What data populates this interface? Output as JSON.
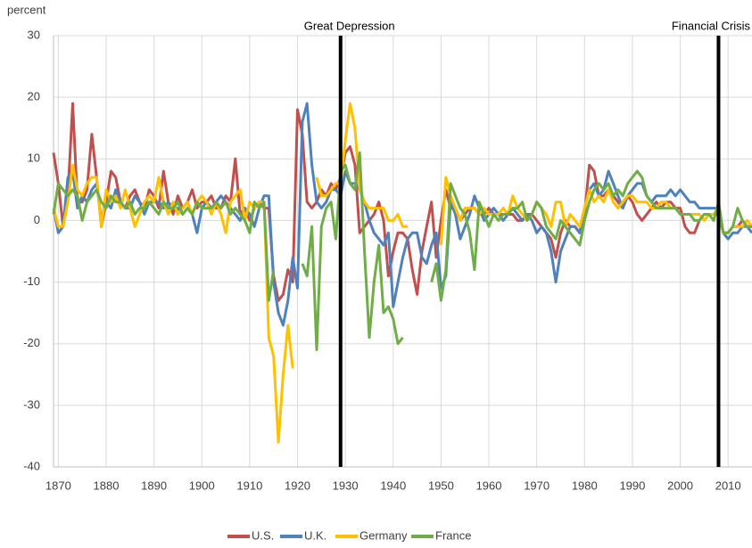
{
  "chart_data": {
    "type": "line",
    "y_label": "percent",
    "annotations": [
      {
        "text": "Great Depression",
        "x": 1929
      },
      {
        "text": "Financial Crisis",
        "x": 2008
      }
    ],
    "x": [
      1869,
      1870,
      1871,
      1872,
      1873,
      1874,
      1875,
      1876,
      1877,
      1878,
      1879,
      1880,
      1881,
      1882,
      1883,
      1884,
      1885,
      1886,
      1887,
      1888,
      1889,
      1890,
      1891,
      1892,
      1893,
      1894,
      1895,
      1896,
      1897,
      1898,
      1899,
      1900,
      1901,
      1902,
      1903,
      1904,
      1905,
      1906,
      1907,
      1908,
      1909,
      1910,
      1911,
      1912,
      1913,
      1914,
      1915,
      1916,
      1917,
      1918,
      1919,
      1920,
      1921,
      1922,
      1923,
      1924,
      1925,
      1926,
      1927,
      1928,
      1929,
      1930,
      1931,
      1932,
      1933,
      1934,
      1935,
      1936,
      1937,
      1938,
      1939,
      1940,
      1941,
      1942,
      1943,
      1944,
      1945,
      1946,
      1947,
      1948,
      1949,
      1950,
      1951,
      1952,
      1953,
      1954,
      1955,
      1956,
      1957,
      1958,
      1959,
      1960,
      1961,
      1962,
      1963,
      1964,
      1965,
      1966,
      1967,
      1968,
      1969,
      1970,
      1971,
      1972,
      1973,
      1974,
      1975,
      1976,
      1977,
      1978,
      1979,
      1980,
      1981,
      1982,
      1983,
      1984,
      1985,
      1986,
      1987,
      1988,
      1989,
      1990,
      1991,
      1992,
      1993,
      1994,
      1995,
      1996,
      1997,
      1998,
      1999,
      2000,
      2001,
      2002,
      2003,
      2004,
      2005,
      2006,
      2007,
      2008,
      2009,
      2010,
      2011,
      2012,
      2013,
      2014,
      2015
    ],
    "series": [
      {
        "name": "U.S.",
        "color": "#c0504d",
        "values": [
          11,
          6,
          -1,
          4,
          19,
          3,
          3,
          5,
          14,
          7,
          -1,
          3,
          8,
          7,
          3,
          2,
          4,
          5,
          3,
          2,
          5,
          4,
          2,
          8,
          3,
          1,
          4,
          2,
          3,
          5,
          2,
          3,
          3,
          4,
          2,
          2,
          4,
          3,
          10,
          1,
          2,
          0,
          2,
          3,
          2,
          2,
          -9,
          -13,
          -12,
          -8,
          -10,
          18,
          14,
          3,
          2,
          3,
          5,
          4,
          6,
          5,
          7,
          11,
          12,
          9,
          -2,
          -1,
          0,
          1,
          3,
          0,
          -9,
          -5,
          -2,
          -2,
          -3,
          -8,
          -12,
          -5,
          -1,
          3,
          -6,
          0,
          5,
          2,
          2,
          0,
          1,
          2,
          2,
          1,
          1,
          2,
          1,
          1,
          1,
          1,
          1,
          0,
          0,
          1,
          1,
          0,
          -1,
          -2,
          -3,
          -6,
          -2,
          0,
          -1,
          -1,
          -2,
          1,
          9,
          8,
          4,
          4,
          5,
          4,
          3,
          2,
          4,
          3,
          1,
          0,
          1,
          2,
          3,
          2,
          3,
          3,
          2,
          2,
          -1,
          -2,
          -2,
          0,
          1,
          1,
          1,
          1,
          -2,
          -2,
          -1,
          -1,
          0,
          -1,
          -1
        ]
      },
      {
        "name": "U.K.",
        "color": "#4f81bd",
        "values": [
          2,
          -2,
          -1,
          7,
          8,
          2,
          4,
          3,
          5,
          6,
          0,
          3,
          2,
          5,
          3,
          2,
          2,
          4,
          3,
          1,
          3,
          3,
          3,
          2,
          3,
          2,
          2,
          1,
          2,
          1,
          -2,
          2,
          3,
          2,
          3,
          4,
          3,
          2,
          1,
          0,
          2,
          1,
          -1,
          2,
          4,
          4,
          -10,
          -15,
          -17,
          -13,
          -6,
          -11,
          16,
          19,
          9,
          3,
          2,
          3,
          5,
          5,
          4,
          8,
          6,
          6,
          5,
          3,
          0,
          -2,
          -3,
          -4,
          -2,
          -14,
          -10,
          -6,
          -3,
          -2,
          -2,
          -6,
          -7,
          -4,
          -2,
          -11,
          -9,
          3,
          1,
          -3,
          -1,
          1,
          4,
          2,
          0,
          1,
          2,
          1,
          0,
          1,
          2,
          1,
          0,
          1,
          0,
          -2,
          -1,
          -2,
          -5,
          -10,
          -5,
          -3,
          -1,
          -1,
          -2,
          2,
          5,
          6,
          4,
          5,
          8,
          6,
          4,
          2,
          4,
          5,
          6,
          6,
          4,
          3,
          4,
          4,
          4,
          5,
          4,
          5,
          4,
          3,
          3,
          2,
          2,
          2,
          2,
          2,
          -2,
          -3,
          -2,
          -2,
          -1,
          -1,
          -2
        ]
      },
      {
        "name": "Germany",
        "color": "#ffc000",
        "values": [
          2,
          -1,
          -1,
          3,
          9,
          5,
          4,
          6,
          7,
          7,
          -1,
          5,
          3,
          4,
          2,
          5,
          2,
          -1,
          1,
          3,
          4,
          3,
          7,
          3,
          1,
          3,
          1,
          2,
          3,
          1,
          3,
          4,
          3,
          1,
          3,
          1,
          -2,
          3,
          4,
          5,
          0,
          3,
          2,
          3,
          3,
          -19,
          -22,
          -36,
          -25,
          -17,
          -24,
          null,
          null,
          null,
          null,
          7,
          4,
          4,
          5,
          6,
          6,
          13,
          19,
          15,
          5,
          3,
          2,
          2,
          2,
          2,
          0,
          0,
          1,
          -1,
          -1,
          null,
          null,
          null,
          null,
          null,
          null,
          -4,
          7,
          4,
          2,
          0,
          2,
          2,
          2,
          1,
          2,
          1,
          1,
          1,
          2,
          1,
          4,
          2,
          1,
          0,
          1,
          3,
          2,
          1,
          -1,
          3,
          3,
          -1,
          1,
          0,
          -1,
          2,
          5,
          3,
          4,
          3,
          5,
          3,
          2,
          3,
          4,
          4,
          3,
          3,
          3,
          2,
          2,
          3,
          3,
          2,
          2,
          1,
          1,
          1,
          1,
          1,
          0,
          1,
          1,
          2,
          -2,
          -2,
          -1,
          -1,
          -1,
          0,
          -1
        ]
      },
      {
        "name": "France",
        "color": "#70ad47",
        "values": [
          1,
          6,
          5,
          4,
          5,
          4,
          0,
          3,
          4,
          5,
          3,
          2,
          4,
          3,
          3,
          2,
          3,
          1,
          2,
          2,
          3,
          2,
          1,
          3,
          2,
          2,
          3,
          1,
          2,
          1,
          3,
          2,
          2,
          2,
          3,
          2,
          3,
          1,
          2,
          1,
          0,
          -2,
          3,
          2,
          3,
          -13,
          -8,
          null,
          null,
          null,
          null,
          null,
          -7,
          -9,
          -1,
          -21,
          -1,
          2,
          3,
          -3,
          8,
          9,
          6,
          5,
          11,
          -5,
          -19,
          -10,
          -4,
          -15,
          -14,
          -16,
          -20,
          -19,
          null,
          null,
          null,
          null,
          null,
          -10,
          -7,
          -13,
          -8,
          6,
          4,
          2,
          1,
          -2,
          -8,
          3,
          1,
          -1,
          1,
          0,
          1,
          1,
          2,
          2,
          3,
          0,
          1,
          3,
          2,
          -1,
          -2,
          -3,
          0,
          -1,
          -2,
          -3,
          -4,
          0,
          3,
          5,
          6,
          5,
          6,
          4,
          5,
          4,
          6,
          7,
          8,
          7,
          4,
          3,
          2,
          2,
          2,
          2,
          2,
          1,
          1,
          1,
          0,
          0,
          1,
          1,
          0,
          3,
          -2,
          -2,
          -1,
          2,
          0,
          -1,
          -1
        ]
      }
    ],
    "xlim": [
      1869,
      2015
    ],
    "xticks": [
      1870,
      1880,
      1890,
      1900,
      1910,
      1920,
      1930,
      1940,
      1950,
      1960,
      1970,
      1980,
      1990,
      2000,
      2010
    ],
    "ylim": [
      -40,
      30
    ],
    "yticks": [
      -40,
      -30,
      -20,
      -10,
      0,
      10,
      20,
      30
    ],
    "grid": true
  }
}
